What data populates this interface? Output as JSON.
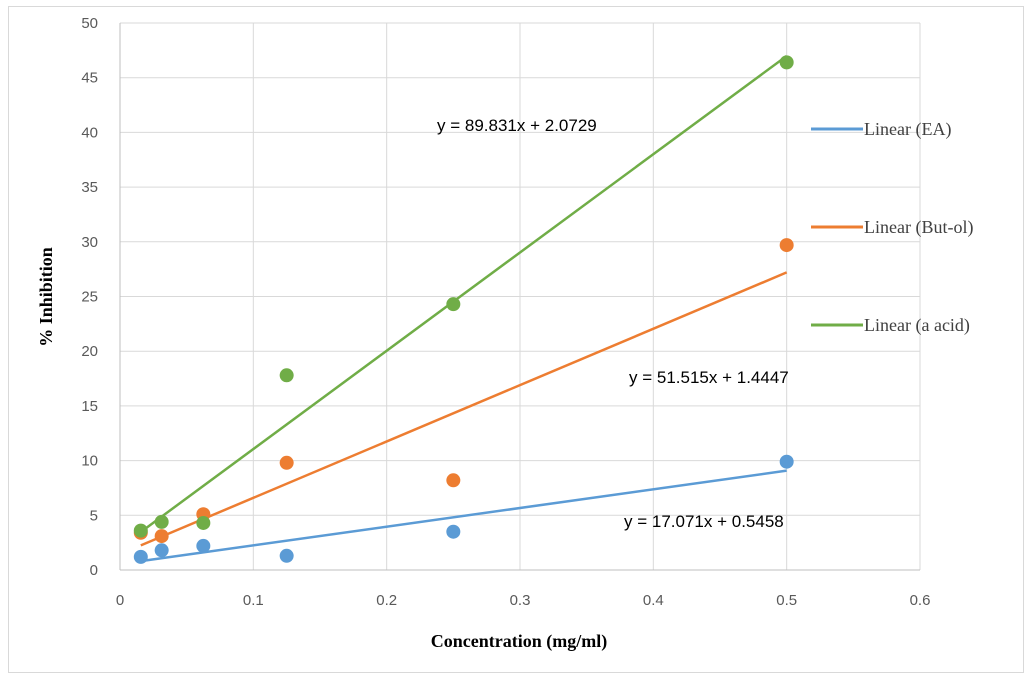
{
  "chart_data": {
    "type": "scatter",
    "title": "",
    "xlabel": "Concentration (mg/ml)",
    "ylabel": "% Inhibition",
    "xlim": [
      0,
      0.6
    ],
    "ylim": [
      0,
      50
    ],
    "x_ticks": [
      "0",
      "0.1",
      "0.2",
      "0.3",
      "0.4",
      "0.5",
      "0.6"
    ],
    "y_ticks": [
      "0",
      "5",
      "10",
      "15",
      "20",
      "25",
      "30",
      "35",
      "40",
      "45",
      "50"
    ],
    "grid": true,
    "legend_position": "right",
    "series": [
      {
        "key": "ea",
        "legend": "Linear (EA)",
        "color": "#5b9bd5",
        "x": [
          0.0156,
          0.03125,
          0.0625,
          0.125,
          0.25,
          0.5
        ],
        "y": [
          1.2,
          1.8,
          2.2,
          1.3,
          3.5,
          9.9
        ],
        "trendline": {
          "slope": 17.071,
          "intercept": 0.5458,
          "equation": "y = 17.071x + 0.5458"
        }
      },
      {
        "key": "butol",
        "legend": "Linear (But-ol)",
        "color": "#ed7d31",
        "x": [
          0.0156,
          0.03125,
          0.0625,
          0.125,
          0.25,
          0.5
        ],
        "y": [
          3.4,
          3.1,
          5.1,
          9.8,
          8.2,
          29.7
        ],
        "trendline": {
          "slope": 51.515,
          "intercept": 1.4447,
          "equation": "y = 51.515x + 1.4447"
        }
      },
      {
        "key": "aacid",
        "legend": "Linear (a acid)",
        "color": "#70ad47",
        "x": [
          0.0156,
          0.03125,
          0.0625,
          0.125,
          0.25,
          0.5
        ],
        "y": [
          3.6,
          4.4,
          4.3,
          17.8,
          24.3,
          46.4
        ],
        "trendline": {
          "slope": 89.831,
          "intercept": 2.0729,
          "equation": "y = 89.831x + 2.0729"
        }
      }
    ]
  }
}
